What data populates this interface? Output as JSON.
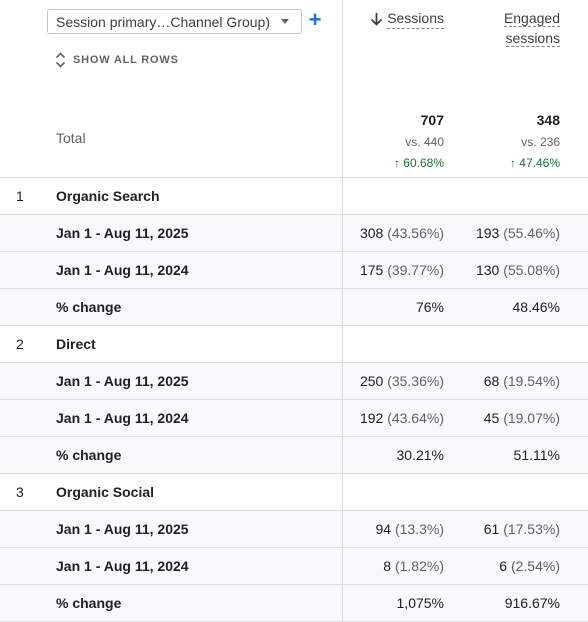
{
  "toolbar": {
    "dimension_label": "Session primary…Channel Group)",
    "add_label": "+",
    "show_all_label": "SHOW ALL ROWS"
  },
  "columns": {
    "sessions": "Sessions",
    "engaged_line1": "Engaged",
    "engaged_line2": "sessions"
  },
  "total": {
    "label": "Total",
    "sessions": "707",
    "sessions_vs": "vs. 440",
    "sessions_change": "↑ 60.68%",
    "engaged": "348",
    "engaged_vs": "vs. 236",
    "engaged_change": "↑ 47.46%"
  },
  "groups": [
    {
      "index": "1",
      "name": "Organic Search",
      "rows": [
        {
          "label": "Jan 1 - Aug 11, 2025",
          "sessions": "308",
          "sessions_pct": "(43.56%)",
          "engaged": "193",
          "engaged_pct": "(55.46%)"
        },
        {
          "label": "Jan 1 - Aug 11, 2024",
          "sessions": "175",
          "sessions_pct": "(39.77%)",
          "engaged": "130",
          "engaged_pct": "(55.08%)"
        },
        {
          "label": "% change",
          "sessions": "76%",
          "sessions_pct": "",
          "engaged": "48.46%",
          "engaged_pct": ""
        }
      ]
    },
    {
      "index": "2",
      "name": "Direct",
      "rows": [
        {
          "label": "Jan 1 - Aug 11, 2025",
          "sessions": "250",
          "sessions_pct": "(35.36%)",
          "engaged": "68",
          "engaged_pct": "(19.54%)"
        },
        {
          "label": "Jan 1 - Aug 11, 2024",
          "sessions": "192",
          "sessions_pct": "(43.64%)",
          "engaged": "45",
          "engaged_pct": "(19.07%)"
        },
        {
          "label": "% change",
          "sessions": "30.21%",
          "sessions_pct": "",
          "engaged": "51.11%",
          "engaged_pct": ""
        }
      ]
    },
    {
      "index": "3",
      "name": "Organic Social",
      "rows": [
        {
          "label": "Jan 1 - Aug 11, 2025",
          "sessions": "94",
          "sessions_pct": "(13.3%)",
          "engaged": "61",
          "engaged_pct": "(17.53%)"
        },
        {
          "label": "Jan 1 - Aug 11, 2024",
          "sessions": "8",
          "sessions_pct": "(1.82%)",
          "engaged": "6",
          "engaged_pct": "(2.54%)"
        },
        {
          "label": "% change",
          "sessions": "1,075%",
          "sessions_pct": "",
          "engaged": "916.67%",
          "engaged_pct": ""
        }
      ]
    }
  ]
}
